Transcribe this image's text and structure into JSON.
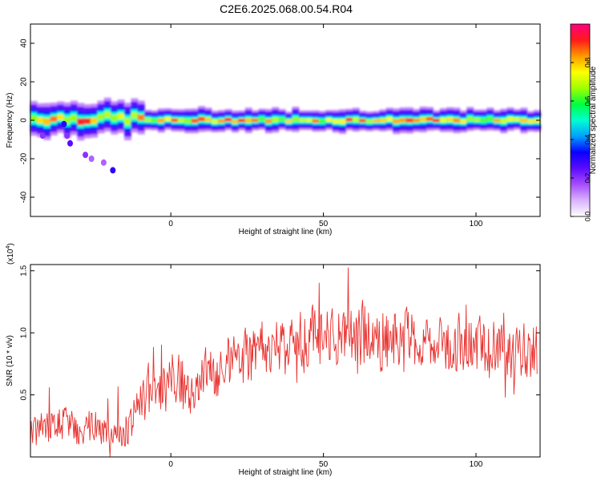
{
  "title": "C2E6.2025.068.00.54.R04",
  "chart_data": [
    {
      "type": "heatmap",
      "xlabel": "Height of straight line (km)",
      "ylabel": "Frequency (Hz)",
      "xlim": [
        -46,
        121
      ],
      "ylim": [
        -50,
        50
      ],
      "xticks": [
        0,
        50,
        100
      ],
      "yticks": [
        -40,
        -20,
        0,
        20,
        40
      ],
      "colorbar": {
        "label": "Normalized spectral amplitude",
        "range": [
          0,
          1
        ],
        "ticks": [
          "0.0",
          "0.2",
          "0.4",
          "0.6",
          "0.8"
        ],
        "colormap": [
          "#ffffff",
          "#d9b3ff",
          "#a64dff",
          "#5b0bff",
          "#0a00ff",
          "#00a0ff",
          "#00ffd0",
          "#00ff40",
          "#a0ff00",
          "#ffff00",
          "#ff9900",
          "#ff1a1a",
          "#ff0080"
        ]
      },
      "band": {
        "center_hz": 0,
        "half_width_hz": 4,
        "x_start": -46,
        "x_end": 121
      },
      "scatter_blobs": [
        {
          "x": -35,
          "y": -2,
          "v": 0.3
        },
        {
          "x": -34,
          "y": -8,
          "v": 0.2
        },
        {
          "x": -33,
          "y": -12,
          "v": 0.25
        },
        {
          "x": -28,
          "y": -18,
          "v": 0.2
        },
        {
          "x": -26,
          "y": -20,
          "v": 0.15
        },
        {
          "x": -22,
          "y": -22,
          "v": 0.15
        },
        {
          "x": -19,
          "y": -26,
          "v": 0.3
        },
        {
          "x": -42,
          "y": -8,
          "v": 0.2
        }
      ]
    },
    {
      "type": "line",
      "xlabel": "Height of straight line (km)",
      "ylabel": "SNR (10 * v/v)",
      "yscale_label": "(x10",
      "yscale_exp": "4",
      "xlim": [
        -46,
        121
      ],
      "ylim": [
        0,
        1.55
      ],
      "xticks": [
        0,
        50,
        100
      ],
      "yticks": [
        0.5,
        1.0,
        1.5
      ],
      "ytick_labels": [
        "0.5",
        "1.0",
        "1.5"
      ],
      "series": [
        {
          "color": "#e8312e",
          "x": [
            -46,
            -42,
            -38,
            -34,
            -30,
            -26,
            -22,
            -18,
            -14,
            -12,
            -10,
            -8,
            -6,
            -4,
            -2,
            0,
            2,
            4,
            6,
            8,
            10,
            12,
            14,
            16,
            18,
            20,
            22,
            24,
            26,
            28,
            30,
            32,
            34,
            36,
            38,
            40,
            42,
            44,
            46,
            48,
            50,
            52,
            54,
            56,
            58,
            60,
            62,
            64,
            66,
            68,
            70,
            72,
            74,
            76,
            78,
            80,
            82,
            84,
            86,
            88,
            90,
            92,
            94,
            96,
            98,
            100,
            102,
            104,
            106,
            108,
            110,
            112,
            114,
            116,
            118,
            120
          ],
          "y": [
            0.18,
            0.25,
            0.22,
            0.3,
            0.2,
            0.26,
            0.2,
            0.18,
            0.2,
            0.35,
            0.45,
            0.5,
            0.55,
            0.5,
            0.62,
            0.64,
            0.62,
            0.6,
            0.5,
            0.55,
            0.6,
            0.72,
            0.68,
            0.7,
            0.75,
            0.8,
            0.78,
            0.82,
            0.85,
            0.8,
            0.88,
            0.82,
            0.85,
            0.92,
            0.88,
            0.9,
            0.95,
            0.88,
            1.0,
            0.92,
            0.95,
            1.0,
            0.92,
            0.95,
            0.98,
            1.0,
            0.95,
            0.98,
            0.9,
            0.92,
            0.95,
            1.0,
            0.95,
            0.92,
            1.0,
            0.9,
            0.95,
            0.9,
            0.92,
            0.95,
            0.92,
            0.88,
            0.92,
            0.9,
            0.85,
            0.88,
            0.92,
            0.85,
            0.9,
            0.88,
            0.85,
            0.82,
            0.9,
            0.85,
            0.88,
            0.85
          ]
        }
      ]
    }
  ]
}
